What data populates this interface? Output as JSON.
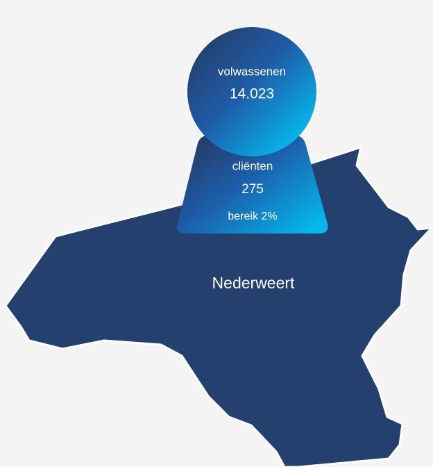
{
  "region": {
    "name": "Nederweert"
  },
  "adults": {
    "label": "volwassenen",
    "value": "14.023"
  },
  "clients": {
    "label": "cliënten",
    "value": "275",
    "reach": "bereik 2%"
  }
}
